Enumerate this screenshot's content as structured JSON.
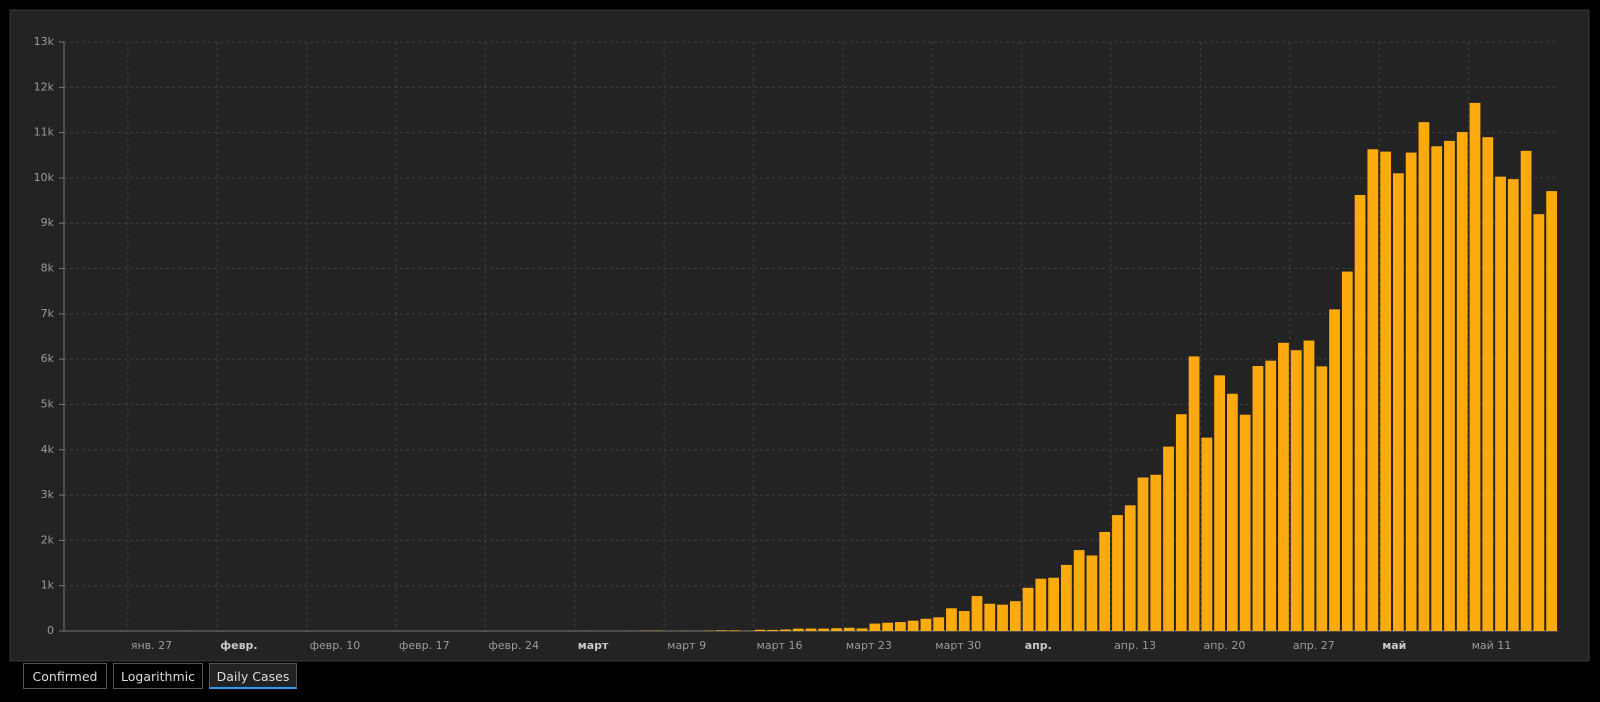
{
  "chart_data": {
    "type": "bar",
    "categories": [
      null,
      null,
      null,
      null,
      null,
      "янв. 27",
      null,
      null,
      null,
      null,
      null,
      null,
      "февр.",
      null,
      null,
      null,
      null,
      null,
      null,
      "февр. 10",
      null,
      null,
      null,
      null,
      null,
      null,
      "февр. 17",
      null,
      null,
      null,
      null,
      null,
      null,
      "февр. 24",
      null,
      null,
      null,
      null,
      null,
      null,
      "март",
      null,
      null,
      null,
      null,
      null,
      null,
      "март 9",
      null,
      null,
      null,
      null,
      null,
      null,
      "март 16",
      null,
      null,
      null,
      null,
      null,
      null,
      "март 23",
      null,
      null,
      null,
      null,
      null,
      null,
      "март 30",
      null,
      null,
      null,
      null,
      null,
      null,
      "апр.",
      null,
      null,
      null,
      null,
      null,
      null,
      "апр. 13",
      null,
      null,
      null,
      null,
      null,
      null,
      "апр. 20",
      null,
      null,
      null,
      null,
      null,
      null,
      "апр. 27",
      null,
      null,
      null,
      null,
      null,
      null,
      "май",
      null,
      null,
      null,
      null,
      null,
      null,
      "май 11",
      null,
      null,
      null,
      null,
      null,
      null
    ],
    "values": [
      0,
      0,
      0,
      0,
      0,
      0,
      0,
      0,
      0,
      2,
      0,
      0,
      0,
      0,
      0,
      0,
      0,
      0,
      0,
      0,
      0,
      0,
      0,
      0,
      0,
      0,
      0,
      0,
      0,
      0,
      0,
      0,
      0,
      0,
      0,
      0,
      0,
      0,
      0,
      0,
      1,
      0,
      0,
      0,
      1,
      6,
      7,
      0,
      3,
      0,
      8,
      17,
      14,
      4,
      27,
      24,
      33,
      52,
      54,
      53,
      61,
      71,
      57,
      163,
      182,
      196,
      228,
      270,
      302,
      501,
      440,
      771,
      601,
      582,
      658,
      954,
      1154,
      1175,
      1459,
      1786,
      1667,
      2186,
      2558,
      2774,
      3388,
      3448,
      4070,
      4785,
      6060,
      4268,
      5642,
      5236,
      4774,
      5849,
      5966,
      6361,
      6198,
      6411,
      5841,
      7099,
      7933,
      9623,
      10633,
      10581,
      10102,
      10559,
      11231,
      10699,
      10817,
      11012,
      11656,
      10899,
      10028,
      9974,
      10598,
      9200,
      9709
    ],
    "color": "#fdaa0e",
    "ylim": [
      0,
      13000
    ],
    "yticks": [
      0,
      {
        "value": 1000,
        "label": "1k"
      },
      {
        "value": 2000,
        "label": "2k"
      },
      {
        "value": 3000,
        "label": "3k"
      },
      {
        "value": 4000,
        "label": "4k"
      },
      {
        "value": 5000,
        "label": "5k"
      },
      {
        "value": 6000,
        "label": "6k"
      },
      {
        "value": 7000,
        "label": "7k"
      },
      {
        "value": 8000,
        "label": "8k"
      },
      {
        "value": 9000,
        "label": "9k"
      },
      {
        "value": 10000,
        "label": "10k"
      },
      {
        "value": 11000,
        "label": "11k"
      },
      {
        "value": 12000,
        "label": "12k"
      },
      {
        "value": 13000,
        "label": "13k"
      }
    ],
    "grid": true
  },
  "controls": {
    "buttons": [
      "Confirmed",
      "Logarithmic",
      "Daily Cases"
    ],
    "active": 2
  }
}
